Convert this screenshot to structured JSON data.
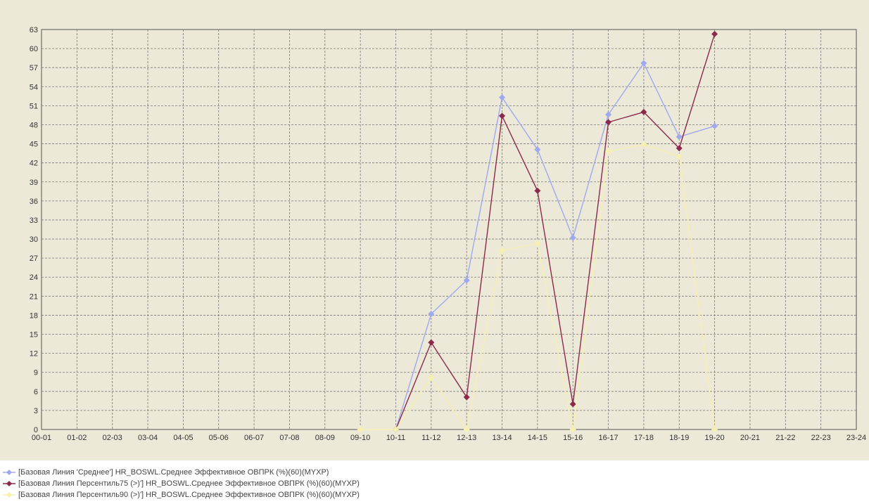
{
  "chart_data": {
    "type": "line",
    "x": [
      "00-01",
      "01-02",
      "02-03",
      "03-04",
      "04-05",
      "05-06",
      "06-07",
      "07-08",
      "08-09",
      "09-10",
      "10-11",
      "11-12",
      "12-13",
      "13-14",
      "14-15",
      "15-16",
      "16-17",
      "17-18",
      "18-19",
      "19-20",
      "20-21",
      "21-22",
      "22-23",
      "23-24"
    ],
    "yticks": [
      0,
      3,
      6,
      9,
      12,
      15,
      18,
      21,
      24,
      27,
      30,
      33,
      36,
      39,
      42,
      45,
      48,
      51,
      54,
      57,
      60,
      63
    ],
    "ylim": [
      0,
      63
    ],
    "grid": true,
    "legend_position": "bottom",
    "series": [
      {
        "name": "[Базовая Линия 'Среднее'] HR_BOSWL.Среднее Эффективное ОВПРК (%)(60)(MYXP)",
        "color": "#a0a8f0",
        "values": [
          null,
          null,
          null,
          null,
          null,
          null,
          null,
          null,
          null,
          null,
          0,
          18.2,
          23.5,
          52.3,
          44.1,
          30.2,
          49.6,
          57.7,
          46.1,
          47.8,
          null,
          null,
          null,
          null
        ]
      },
      {
        "name": "[Базовая Линия Персентиль75 (>)'] HR_BOSWL.Среднее Эффективное ОВПРК (%)(60)(MYXP)",
        "color": "#8b2a4a",
        "values": [
          null,
          null,
          null,
          null,
          null,
          null,
          null,
          null,
          null,
          null,
          0,
          13.7,
          5.1,
          49.4,
          37.6,
          4.0,
          48.4,
          50.0,
          44.3,
          62.3,
          null,
          null,
          null,
          null
        ]
      },
      {
        "name": "[Базовая Линия Персентиль90 (>)'] HR_BOSWL.Среднее Эффективное ОВПРК (%)(60)(MYXP)",
        "color": "#f5f0b0",
        "values": [
          null,
          null,
          null,
          null,
          null,
          null,
          null,
          null,
          null,
          0,
          0,
          8.2,
          0,
          28.2,
          29.3,
          0,
          43.8,
          44.9,
          43.0,
          0,
          null,
          null,
          null,
          null
        ]
      }
    ]
  }
}
